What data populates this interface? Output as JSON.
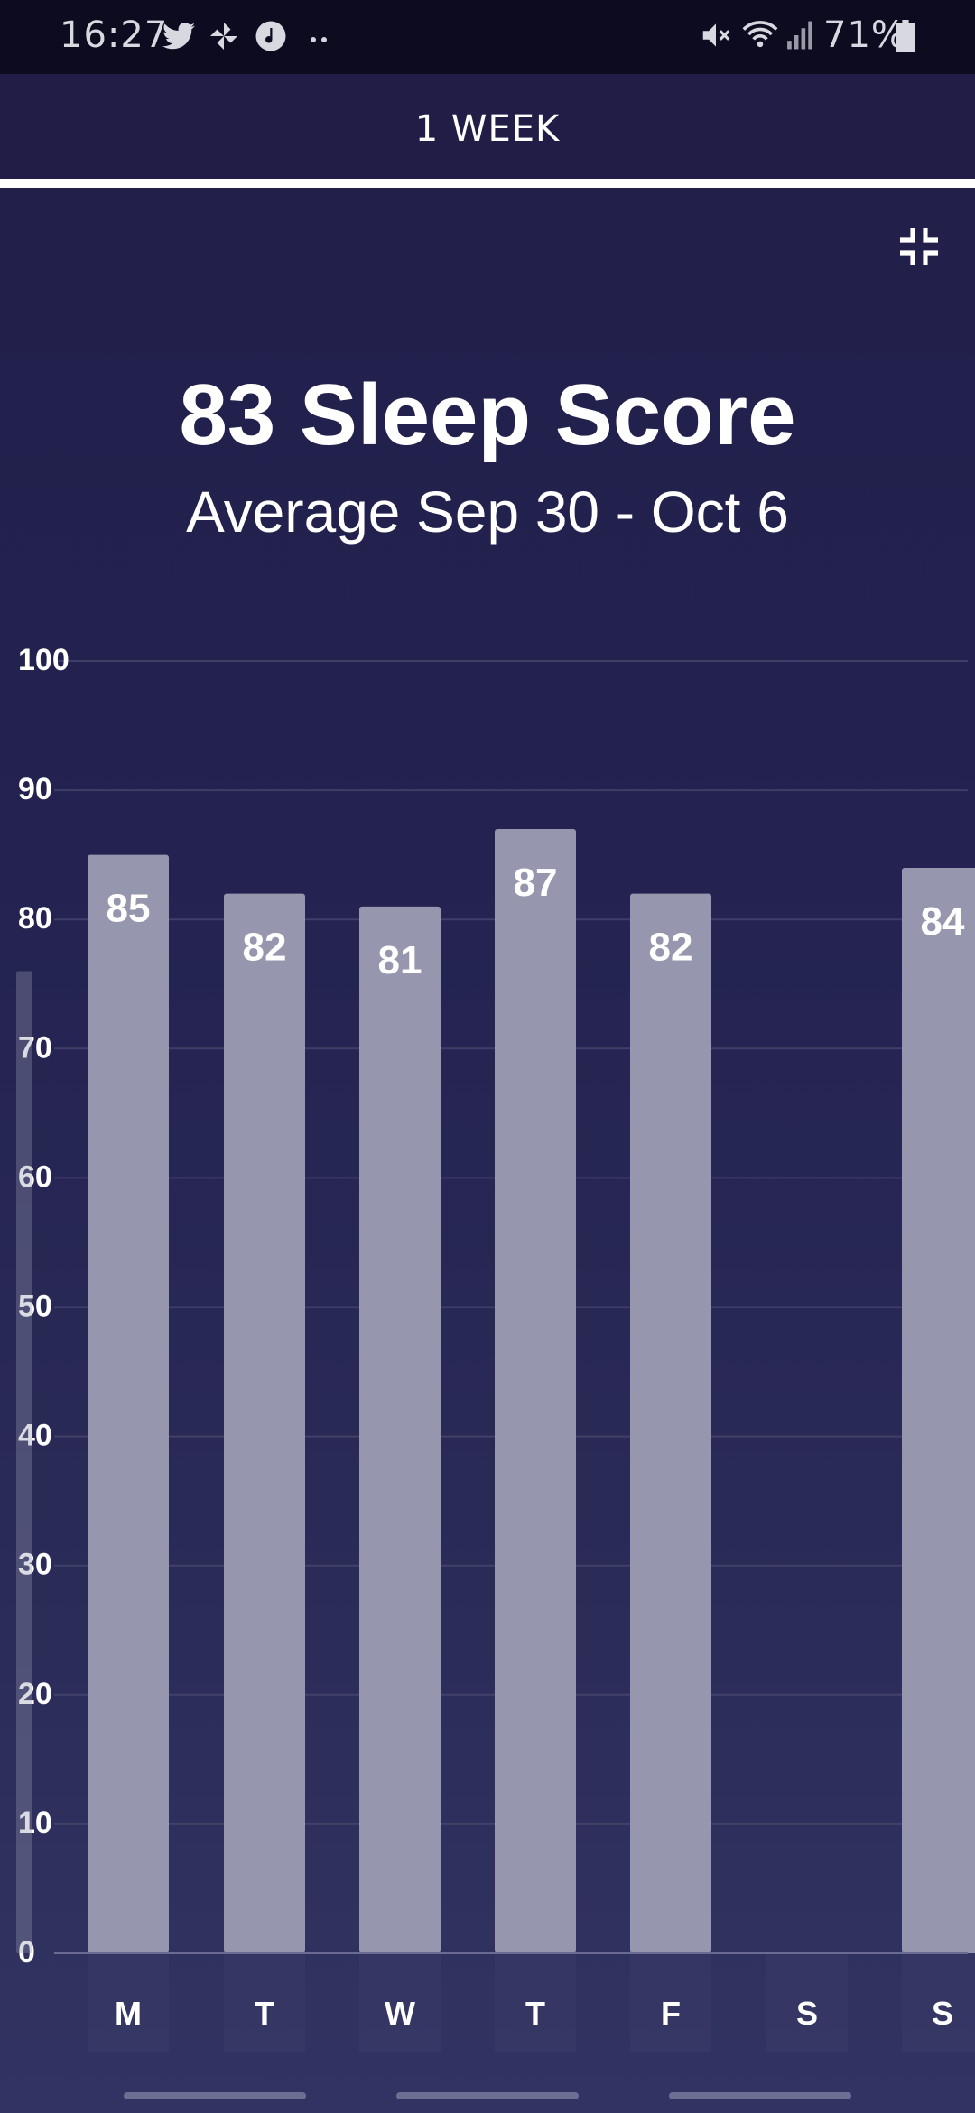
{
  "status_bar": {
    "time": "16:27",
    "battery": "71%",
    "left_icons": [
      "twitter-icon",
      "pinwheel-icon",
      "music-note-icon",
      "more-dots-icon"
    ],
    "right_icons": [
      "mute-icon",
      "wifi-icon",
      "signal-icon",
      "battery-icon"
    ]
  },
  "header": {
    "tab_label": "1 WEEK"
  },
  "summary": {
    "headline": "83 Sleep Score",
    "subheadline": "Average Sep 30 - Oct 6"
  },
  "colors": {
    "bar": "#9697ae",
    "background_top": "#221f48",
    "background_bottom": "#313462",
    "gridline": "#4a4a72",
    "text": "#ffffff"
  },
  "chart_data": {
    "type": "bar",
    "categories": [
      "M",
      "T",
      "W",
      "T",
      "F",
      "S",
      "S"
    ],
    "values": [
      85,
      82,
      81,
      87,
      82,
      null,
      84
    ],
    "data_labels": [
      "85",
      "82",
      "81",
      "87",
      "82",
      "",
      "84"
    ],
    "ylim": [
      0,
      100
    ],
    "yticks": [
      0,
      10,
      20,
      30,
      40,
      50,
      60,
      70,
      80,
      90,
      100
    ],
    "grid": true,
    "title": "",
    "xlabel": "",
    "ylabel": "",
    "partial_previous_bar": 76
  }
}
